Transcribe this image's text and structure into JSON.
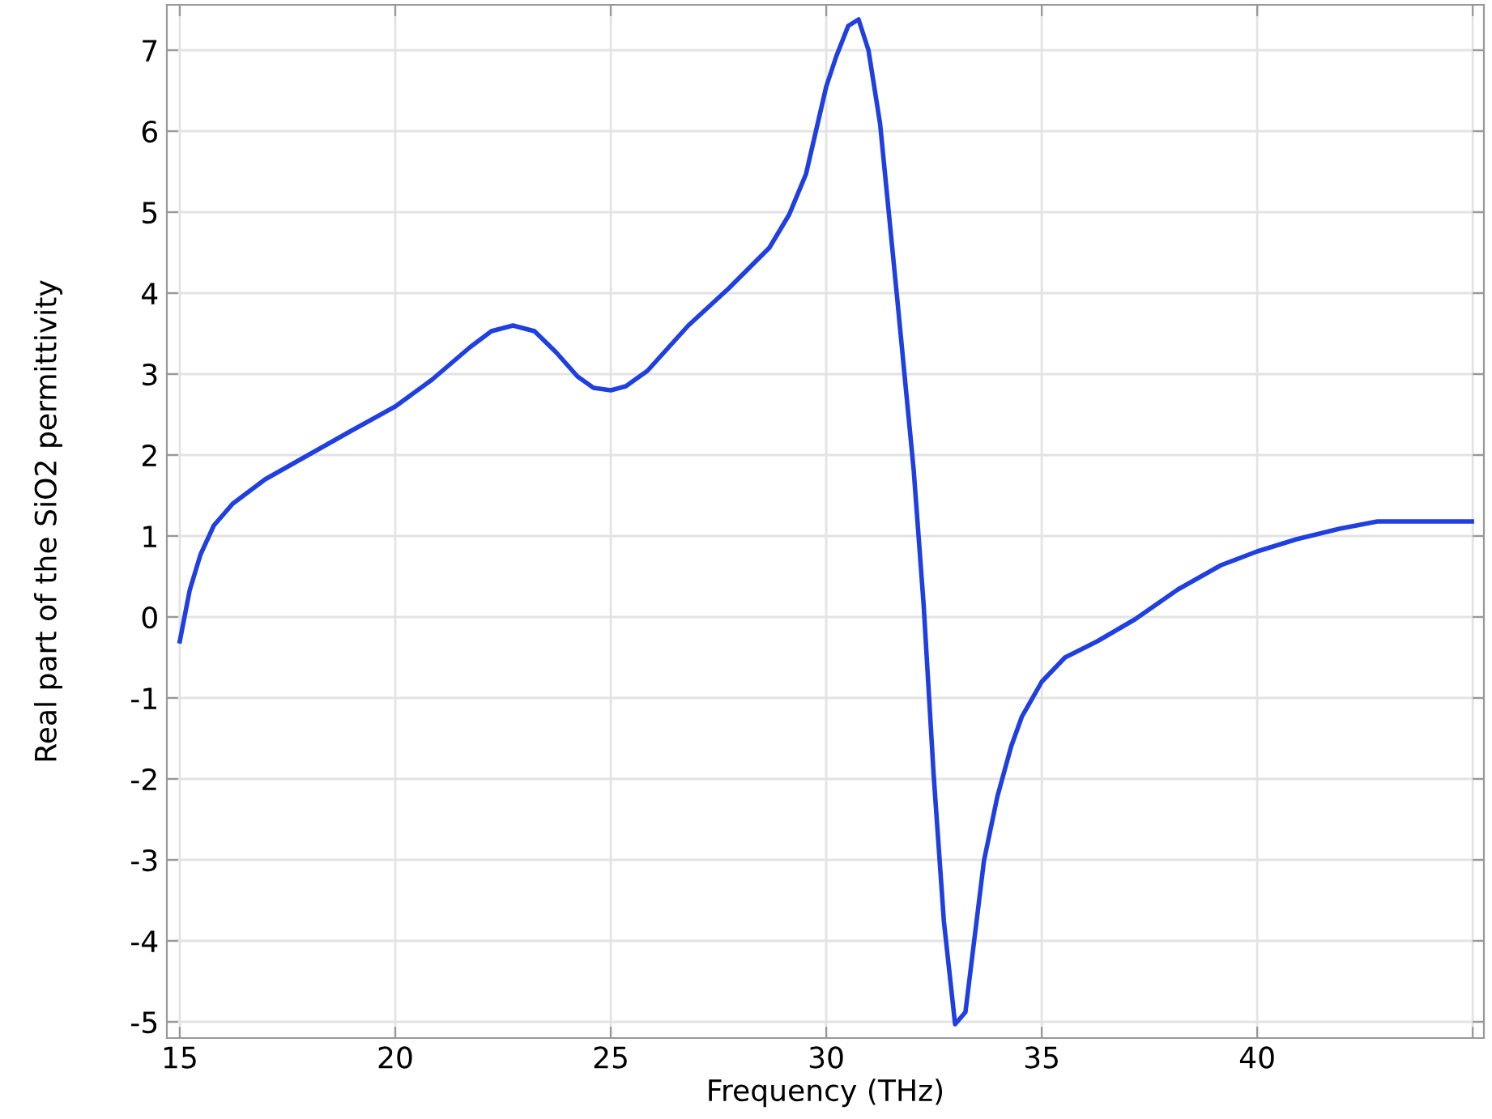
{
  "chart_data": {
    "type": "line",
    "xlabel": "Frequency (THz)",
    "ylabel": "Real part of the SiO2 permittivity",
    "xlim": [
      14.7,
      45.26
    ],
    "ylim": [
      -5.2,
      7.56
    ],
    "xticks": [
      15,
      20,
      25,
      30,
      35,
      40,
      {
        "value": 45,
        "label": null
      }
    ],
    "yticks": [
      -5,
      -4,
      -3,
      -2,
      -1,
      0,
      1,
      2,
      3,
      4,
      5,
      6,
      7
    ],
    "grid": true,
    "marker": "none",
    "line_style": "solid",
    "series": [
      {
        "color": "#1f3fe0",
        "x": [
          15,
          15.23,
          15.48,
          15.79,
          16.23,
          16.98,
          17.98,
          18.98,
          20,
          20.85,
          21.73,
          22.23,
          22.73,
          23.23,
          23.73,
          24.23,
          24.6,
          25,
          25.35,
          25.85,
          26.8,
          27.74,
          28.68,
          29.14,
          29.53,
          30.0,
          30.23,
          30.51,
          30.75,
          30.98,
          31.25,
          31.64,
          32.03,
          32.26,
          32.49,
          32.73,
          32.99,
          33.23,
          33.66,
          33.97,
          34.29,
          34.54,
          35,
          35.54,
          36.29,
          37.16,
          38.16,
          39.16,
          40,
          40.91,
          41.91,
          42.79,
          44.98
        ],
        "values": [
          -0.3,
          0.33,
          0.77,
          1.13,
          1.4,
          1.7,
          2.0,
          2.3,
          2.6,
          2.93,
          3.33,
          3.53,
          3.6,
          3.53,
          3.27,
          2.97,
          2.83,
          2.8,
          2.85,
          3.04,
          3.6,
          4.06,
          4.56,
          4.97,
          5.47,
          6.55,
          6.92,
          7.3,
          7.38,
          7.0,
          6.09,
          3.97,
          1.81,
          0.15,
          -1.93,
          -3.76,
          -5.03,
          -4.88,
          -3.01,
          -2.22,
          -1.6,
          -1.23,
          -0.8,
          -0.5,
          -0.3,
          -0.03,
          0.34,
          0.64,
          0.81,
          0.96,
          1.09,
          1.18,
          1.18
        ]
      }
    ]
  }
}
